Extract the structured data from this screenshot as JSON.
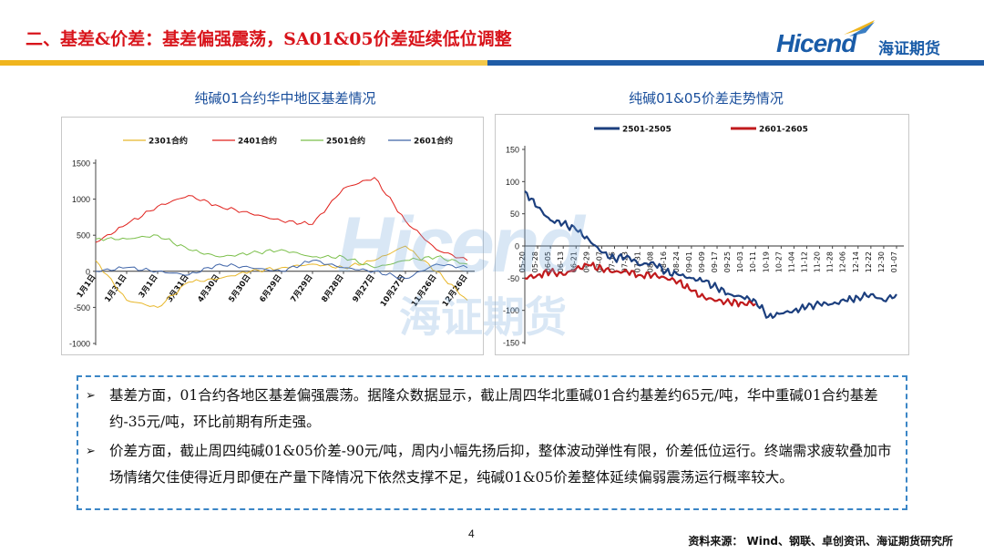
{
  "slide": {
    "title": "二、基差&价差：基差偏强震荡，SA01&05价差延续低位调整",
    "page_number": "4",
    "source": "资料来源：  Wind、钢联、卓创资讯、海证期货研究所"
  },
  "logo": {
    "word": "Hicend",
    "cn": "海证期货",
    "mark": "®"
  },
  "watermark": {
    "word": "Hicend",
    "cn": "海证期货"
  },
  "colors": {
    "title_red": "#d8141b",
    "brand_blue": "#1a5ca8",
    "band_gold": "#f0b51e"
  },
  "bullets": [
    {
      "mark": "➢",
      "text": "基差方面，01合约各地区基差偏强震荡。据隆众数据显示，截止周四华北重碱01合约基差约65元/吨，华中重碱01合约基差约-35元/吨，环比前期有所走强。"
    },
    {
      "mark": "➢",
      "text": "价差方面，截止周四纯碱01&05价差-90元/吨，周内小幅先扬后抑，整体波动弹性有限，价差低位运行。终端需求疲软叠加市场情绪欠佳使得近月即便在产量下降情况下依然支撑不足，纯碱01&05价差整体延续偏弱震荡运行概率较大。"
    }
  ],
  "chart_data": [
    {
      "type": "line",
      "title": "纯碱01合约华中地区基差情况",
      "categories": [
        "1月1日",
        "1月31日",
        "3月1日",
        "3月31日",
        "4月30日",
        "5月30日",
        "6月29日",
        "7月29日",
        "8月28日",
        "9月27日",
        "10月27日",
        "11月26日",
        "12月26日"
      ],
      "ylim": [
        -1000,
        1500
      ],
      "yticks": [
        1500,
        1000,
        500,
        0,
        -500,
        -1000
      ],
      "legend_position": "top",
      "series": [
        {
          "name": "2301合约",
          "color": "#e8b72a",
          "values": [
            150,
            -400,
            -500,
            -150,
            -100,
            0,
            50,
            100,
            50,
            150,
            350,
            0,
            -400
          ]
        },
        {
          "name": "2401合约",
          "color": "#e0201b",
          "values": [
            400,
            650,
            900,
            1050,
            900,
            800,
            700,
            650,
            1150,
            1300,
            700,
            300,
            150
          ]
        },
        {
          "name": "2501合约",
          "color": "#7bbf4a",
          "values": [
            450,
            450,
            500,
            300,
            200,
            250,
            300,
            200,
            200,
            50,
            150,
            200,
            100
          ]
        },
        {
          "name": "2601合约",
          "color": "#3f64a8",
          "values": [
            0,
            50,
            0,
            -50,
            100,
            50,
            0,
            150,
            50,
            0,
            -100,
            100,
            50
          ]
        }
      ]
    },
    {
      "type": "line",
      "title": "纯碱01&05价差走势情况",
      "categories": [
        "05-20",
        "05-28",
        "06-05",
        "06-13",
        "06-21",
        "06-29",
        "07-07",
        "07-15",
        "07-23",
        "07-31",
        "08-08",
        "08-16",
        "08-24",
        "09-01",
        "09-09",
        "09-17",
        "09-25",
        "10-03",
        "10-11",
        "10-19",
        "10-27",
        "11-04",
        "11-12",
        "11-20",
        "11-28",
        "12-06",
        "12-14",
        "12-22",
        "12-30",
        "01-07"
      ],
      "ylim": [
        -150,
        150
      ],
      "yticks": [
        150,
        100,
        50,
        0,
        -50,
        -100,
        -150
      ],
      "legend_position": "top",
      "series": [
        {
          "name": "2501-2505",
          "color": "#1c3f7e",
          "values": [
            85,
            60,
            40,
            35,
            25,
            10,
            -10,
            -20,
            -15,
            -30,
            -25,
            -40,
            -45,
            -50,
            -55,
            -65,
            -75,
            -80,
            -85,
            -110,
            -105,
            -100,
            -95,
            -90,
            -90,
            -85,
            -80,
            -75,
            -85,
            -75
          ]
        },
        {
          "name": "2601-2605",
          "color": "#c01a1c",
          "values": [
            -50,
            -45,
            -40,
            -45,
            -35,
            -30,
            -35,
            -40,
            -40,
            -45,
            -45,
            -50,
            -55,
            -70,
            -80,
            -85,
            -88,
            -88,
            -90,
            null,
            null,
            null,
            null,
            null,
            null,
            null,
            null,
            null,
            null,
            null
          ]
        }
      ]
    }
  ]
}
